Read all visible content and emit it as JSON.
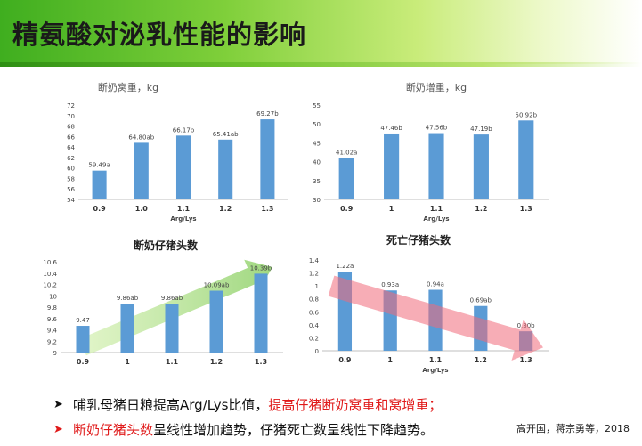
{
  "slide": {
    "title": "精氨酸对泌乳性能的影响",
    "header_color_start": "#3fae1f",
    "bar_color": "#5b9bd5",
    "bullets": [
      {
        "segments": [
          {
            "text": "哺乳母猪日粮提高Arg/Lys比值，",
            "color": "normal"
          },
          {
            "text": "提高仔猪断奶窝重和窝增重；",
            "color": "red"
          }
        ],
        "marker_color": "black"
      },
      {
        "segments": [
          {
            "text": "断奶仔猪头数",
            "color": "red"
          },
          {
            "text": "呈线性增加趋势，仔猪死亡数呈线性下降趋势。",
            "color": "normal"
          }
        ],
        "marker_color": "red"
      }
    ],
    "citation": "高开国，蒋宗勇等，2018"
  },
  "chart_data": [
    {
      "type": "bar",
      "title": "断奶窝重，kg",
      "xlabel": "Arg/Lys",
      "categories": [
        "0.9",
        "1.0",
        "1.1",
        "1.2",
        "1.3"
      ],
      "values": [
        59.49,
        64.8,
        66.17,
        65.41,
        69.27
      ],
      "labels": [
        "59.49a",
        "64.80ab",
        "66.17b",
        "65.41ab",
        "69.27b"
      ],
      "ylim": [
        54,
        72
      ],
      "yticks": [
        54,
        56,
        58,
        60,
        62,
        64,
        66,
        68,
        70,
        72
      ],
      "ytick_labels": [
        "54",
        "56",
        "58",
        "60",
        "62",
        "64",
        "66",
        "68",
        "70",
        "72"
      ]
    },
    {
      "type": "bar",
      "title": "断奶增重，kg",
      "xlabel": "Arg/Lys",
      "categories": [
        "0.9",
        "1",
        "1.1",
        "1.2",
        "1.3"
      ],
      "values": [
        41.02,
        47.46,
        47.56,
        47.19,
        50.92
      ],
      "labels": [
        "41.02a",
        "47.46b",
        "47.56b",
        "47.19b",
        "50.92b"
      ],
      "ylim": [
        30,
        55
      ],
      "yticks": [
        30,
        35,
        40,
        45,
        50,
        55
      ],
      "ytick_labels": [
        "30",
        "35",
        "40",
        "45",
        "50",
        "55"
      ]
    },
    {
      "type": "bar",
      "title": "断奶仔猪头数",
      "xlabel": "",
      "categories": [
        "0.9",
        "1",
        "1.1",
        "1.2",
        "1.3"
      ],
      "values": [
        9.47,
        9.86,
        9.86,
        10.09,
        10.39
      ],
      "labels": [
        "9.47",
        "9.86ab",
        "9.86ab",
        "10.09ab",
        "10.39b"
      ],
      "ylim": [
        9,
        10.6
      ],
      "yticks": [
        9,
        9.2,
        9.4,
        9.6,
        9.8,
        10,
        10.2,
        10.4,
        10.6
      ],
      "ytick_labels": [
        "9",
        "9.2",
        "9.4",
        "9.6",
        "9.8",
        "10",
        "10.2",
        "10.4",
        "10.6"
      ],
      "trend": "increasing"
    },
    {
      "type": "bar",
      "title": "死亡仔猪头数",
      "xlabel": "Arg/Lys",
      "categories": [
        "0.9",
        "1",
        "1.1",
        "1.2",
        "1.3"
      ],
      "values": [
        1.22,
        0.93,
        0.94,
        0.69,
        0.3
      ],
      "labels": [
        "1.22a",
        "0.93a",
        "0.94a",
        "0.69ab",
        "0.30b"
      ],
      "ylim": [
        0,
        1.4
      ],
      "yticks": [
        0,
        0.2,
        0.4,
        0.6,
        0.8,
        1,
        1.2,
        1.4
      ],
      "ytick_labels": [
        "0",
        "0.2",
        "0.4",
        "0.6",
        "0.8",
        "1",
        "1.2",
        "1.4"
      ],
      "trend": "decreasing"
    }
  ]
}
